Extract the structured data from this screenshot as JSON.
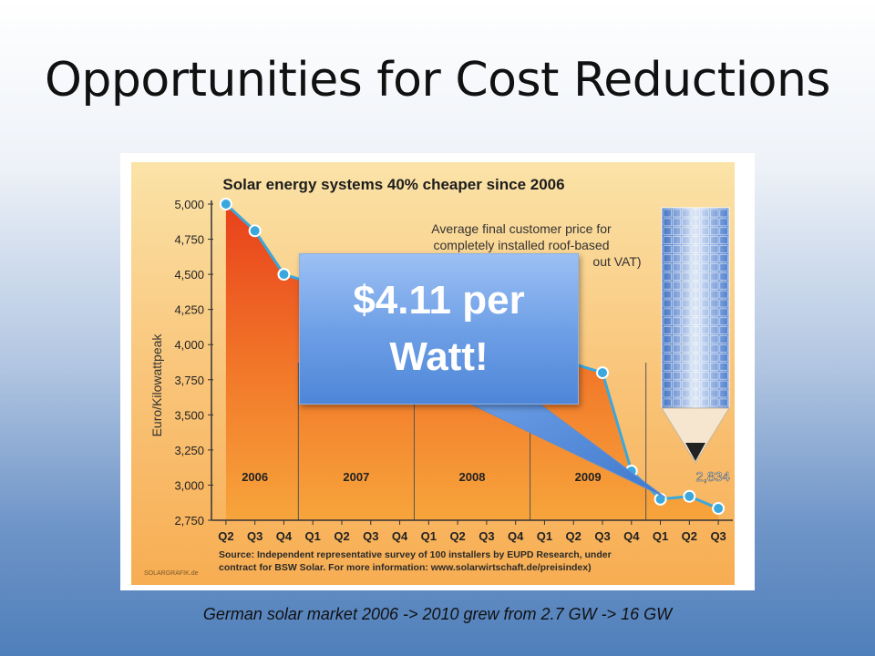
{
  "slide": {
    "title": "Opportunities for Cost Reductions",
    "caption": "German solar market 2006 -> 2010 grew from 2.7 GW -> 16 GW"
  },
  "callout": {
    "line1": "$4.11 per",
    "line2": "Watt!"
  },
  "chart_data": {
    "type": "area",
    "title": "Solar energy systems 40% cheaper since 2006",
    "subtitle": [
      "Average final customer price for",
      "completely installed roof-based",
      "out VAT)"
    ],
    "ylabel": "Euro/Kilowattpeak",
    "ylim": [
      2750,
      5000
    ],
    "yticks": [
      "5,000",
      "4,750",
      "4,500",
      "4,250",
      "4,000",
      "3,750",
      "3,500",
      "3,250",
      "3,000",
      "2,750"
    ],
    "categories": [
      "Q2",
      "Q3",
      "Q4",
      "Q1",
      "Q2",
      "Q3",
      "Q4",
      "Q1",
      "Q2",
      "Q3",
      "Q4",
      "Q1",
      "Q2",
      "Q3",
      "Q4",
      "Q1",
      "Q2",
      "Q3"
    ],
    "years": [
      "2006",
      "2007",
      "2008",
      "2009"
    ],
    "values": [
      5000,
      4810,
      4500,
      null,
      null,
      null,
      null,
      null,
      null,
      null,
      null,
      null,
      null,
      3800,
      3100,
      2900,
      2920,
      2834
    ],
    "data_label": "2,834",
    "source": [
      "Source: Independent representative survey of 100 installers by EUPD Research, under",
      "contract for BSW Solar. For more information: www.solarwirtschaft.de/preisindex)"
    ],
    "credit": "SOLARGRAFIK.de",
    "colors": {
      "background": "#f9c06e",
      "area_top": "#e8421c",
      "area_bottom": "#f6a33a",
      "line": "#3aa8dc",
      "point_fill": "#3aa8dc",
      "point_stroke": "#ffffff"
    }
  }
}
